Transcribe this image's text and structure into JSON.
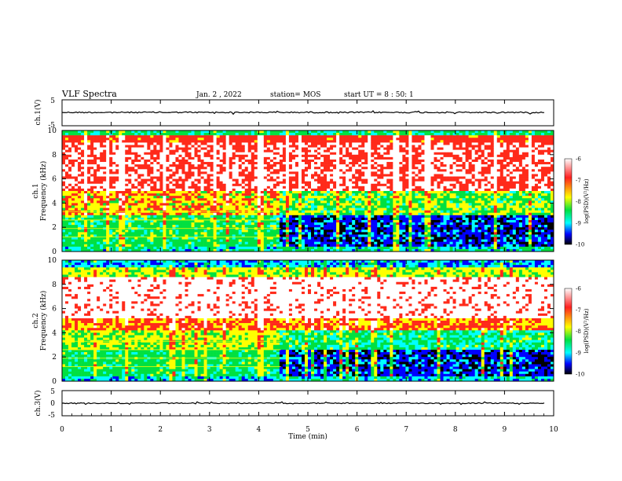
{
  "header": {
    "title": "VLF Spectra",
    "date": "Jan. 2 , 2022",
    "station": "station= MOS",
    "start_ut": "start UT = 8 : 50: 1"
  },
  "chart_data": [
    {
      "type": "line",
      "name": "waveform-ch1",
      "ylabel": "ch.1(V)",
      "ylim": [
        -5,
        5
      ],
      "yticks": [
        "5",
        "-5"
      ],
      "xlim": [
        0,
        10
      ]
    },
    {
      "type": "heatmap",
      "name": "spectrogram-ch1",
      "ylabel_top": "ch.1",
      "ylabel": "Frequency (kHz)",
      "ylim": [
        0,
        10
      ],
      "yticks": [
        "0",
        "2",
        "4",
        "6",
        "8",
        "10"
      ],
      "xlim": [
        0,
        10
      ],
      "regime_change_min": 4.45,
      "colorbar": {
        "label": "log(PSD)(V²/Hz)",
        "range": [
          -10,
          -6
        ],
        "ticks": [
          "-6",
          "-7",
          "-8",
          "-9",
          "-10"
        ]
      }
    },
    {
      "type": "heatmap",
      "name": "spectrogram-ch2",
      "ylabel_top": "ch.2",
      "ylabel": "Frequency (kHz)",
      "ylim": [
        0,
        10
      ],
      "yticks": [
        "0",
        "2",
        "4",
        "6",
        "8",
        "10"
      ],
      "xlim": [
        0,
        10
      ],
      "regime_change_min": 4.45,
      "colorbar": {
        "label": "log(PSD)(V²/Hz)",
        "range": [
          -10,
          -6
        ],
        "ticks": [
          "-6",
          "-7",
          "-8",
          "-9",
          "-10"
        ]
      }
    },
    {
      "type": "line",
      "name": "waveform-ch3",
      "ylabel": "ch.3(V)",
      "ylim": [
        -5,
        5
      ],
      "yticks": [
        "5",
        "0",
        "-5"
      ],
      "xlim": [
        0,
        10
      ]
    }
  ],
  "xaxis": {
    "label": "Time (min)",
    "ticks": [
      "0",
      "1",
      "2",
      "3",
      "4",
      "5",
      "6",
      "7",
      "8",
      "9",
      "10"
    ]
  },
  "colors": {
    "white": "#ffffff",
    "red": "#ff2a1a",
    "yellow": "#ffff00",
    "green": "#00e040",
    "cyan": "#00ffff",
    "blue": "#0000ff",
    "black": "#000000"
  }
}
